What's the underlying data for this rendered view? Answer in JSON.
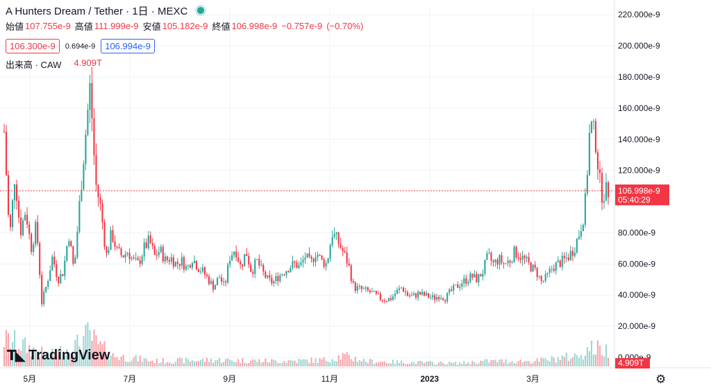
{
  "header": {
    "title": "A Hunters Dream / Tether · 1日 · MEXC",
    "status_color": "#26a69a"
  },
  "ohlc": {
    "open_label": "始値",
    "open": "107.755e-9",
    "high_label": "高値",
    "high": "111.999e-9",
    "low_label": "安値",
    "low": "105.182e-9",
    "close_label": "終値",
    "close": "106.998e-9",
    "change": "−0.757e-9",
    "change_pct": "(−0.70%)"
  },
  "quote": {
    "bid": "106.300e-9",
    "spread": "0.694e-9",
    "ask": "106.994e-9"
  },
  "volume_legend": {
    "label": "出来高 · CAW",
    "value": "4.909T"
  },
  "branding": {
    "name": "TradingView"
  },
  "price_tag": {
    "price": "106.998e-9",
    "countdown": "05:40:29"
  },
  "volume_tag": {
    "value": "4.909T"
  },
  "icons": {
    "settings": "gear-icon",
    "logo": "tradingview-logo-icon"
  },
  "colors": {
    "up": "#26a69a",
    "down": "#f23645",
    "ask": "#2962ff"
  },
  "chart_data": {
    "type": "candlestick",
    "title": "A Hunters Dream / Tether · 1日 · MEXC",
    "ylim": [
      0,
      225
    ],
    "y_unit": "e-9",
    "y_ticks": [
      "220.000e-9",
      "200.000e-9",
      "180.000e-9",
      "160.000e-9",
      "140.000e-9",
      "120.000e-9",
      "100.000e-9",
      "80.000e-9",
      "60.000e-9",
      "40.000e-9",
      "20.000e-9",
      "0.000e-9"
    ],
    "y_tick_values": [
      220,
      200,
      180,
      160,
      140,
      120,
      100,
      80,
      60,
      40,
      20,
      0
    ],
    "x_ticks": [
      "5月",
      "7月",
      "9月",
      "11月",
      "2023",
      "3月"
    ],
    "x_tick_positions": [
      0.0423,
      0.2078,
      0.3733,
      0.5388,
      0.7043,
      0.8752
    ],
    "last_price": 106.998,
    "grid": true,
    "close_points": [
      [
        0.0,
        145
      ],
      [
        0.0089,
        75
      ],
      [
        0.0178,
        118
      ],
      [
        0.0267,
        80
      ],
      [
        0.0356,
        95
      ],
      [
        0.0445,
        70
      ],
      [
        0.0534,
        85
      ],
      [
        0.0623,
        35
      ],
      [
        0.0712,
        48
      ],
      [
        0.0801,
        65
      ],
      [
        0.089,
        50
      ],
      [
        0.0979,
        55
      ],
      [
        0.1068,
        80
      ],
      [
        0.1157,
        55
      ],
      [
        0.1246,
        98
      ],
      [
        0.1335,
        138
      ],
      [
        0.1424,
        175
      ],
      [
        0.1513,
        112
      ],
      [
        0.1602,
        95
      ],
      [
        0.1691,
        65
      ],
      [
        0.178,
        80
      ],
      [
        0.1869,
        68
      ],
      [
        0.1958,
        65
      ],
      [
        0.2047,
        68
      ],
      [
        0.2136,
        62
      ],
      [
        0.2225,
        60
      ],
      [
        0.2314,
        70
      ],
      [
        0.2403,
        75
      ],
      [
        0.2492,
        65
      ],
      [
        0.2581,
        69
      ],
      [
        0.267,
        62
      ],
      [
        0.2759,
        64
      ],
      [
        0.2848,
        60
      ],
      [
        0.2937,
        62
      ],
      [
        0.3026,
        57
      ],
      [
        0.3115,
        64
      ],
      [
        0.3204,
        58
      ],
      [
        0.3293,
        55
      ],
      [
        0.3382,
        50
      ],
      [
        0.3471,
        45
      ],
      [
        0.356,
        52
      ],
      [
        0.3649,
        45
      ],
      [
        0.3738,
        65
      ],
      [
        0.3827,
        70
      ],
      [
        0.3916,
        58
      ],
      [
        0.4005,
        68
      ],
      [
        0.4094,
        55
      ],
      [
        0.4183,
        62
      ],
      [
        0.4272,
        55
      ],
      [
        0.4361,
        50
      ],
      [
        0.445,
        48
      ],
      [
        0.4539,
        52
      ],
      [
        0.4628,
        55
      ],
      [
        0.4717,
        58
      ],
      [
        0.4806,
        60
      ],
      [
        0.4895,
        58
      ],
      [
        0.4984,
        65
      ],
      [
        0.5073,
        60
      ],
      [
        0.5162,
        68
      ],
      [
        0.5251,
        62
      ],
      [
        0.534,
        60
      ],
      [
        0.5429,
        80
      ],
      [
        0.5518,
        75
      ],
      [
        0.5607,
        68
      ],
      [
        0.5696,
        60
      ],
      [
        0.5785,
        45
      ],
      [
        0.5874,
        44
      ],
      [
        0.5963,
        43
      ],
      [
        0.6052,
        42
      ],
      [
        0.6141,
        40
      ],
      [
        0.623,
        38
      ],
      [
        0.6319,
        37
      ],
      [
        0.6408,
        38
      ],
      [
        0.6497,
        42
      ],
      [
        0.6586,
        45
      ],
      [
        0.6675,
        40
      ],
      [
        0.6764,
        39
      ],
      [
        0.6853,
        41
      ],
      [
        0.6942,
        40
      ],
      [
        0.7031,
        39
      ],
      [
        0.712,
        38
      ],
      [
        0.7209,
        40
      ],
      [
        0.7298,
        38
      ],
      [
        0.7387,
        42
      ],
      [
        0.7476,
        45
      ],
      [
        0.7565,
        48
      ],
      [
        0.7654,
        50
      ],
      [
        0.7743,
        52
      ],
      [
        0.7832,
        50
      ],
      [
        0.7921,
        55
      ],
      [
        0.801,
        65
      ],
      [
        0.8099,
        60
      ],
      [
        0.8188,
        63
      ],
      [
        0.8277,
        60
      ],
      [
        0.8366,
        62
      ],
      [
        0.8455,
        68
      ],
      [
        0.8544,
        65
      ],
      [
        0.8633,
        62
      ],
      [
        0.8722,
        58
      ],
      [
        0.8811,
        55
      ],
      [
        0.89,
        48
      ],
      [
        0.8989,
        52
      ],
      [
        0.9078,
        58
      ],
      [
        0.9167,
        60
      ],
      [
        0.9256,
        62
      ],
      [
        0.9345,
        65
      ],
      [
        0.9434,
        70
      ],
      [
        0.9523,
        80
      ],
      [
        0.9612,
        95
      ],
      [
        0.9701,
        150
      ],
      [
        0.979,
        140
      ],
      [
        0.9879,
        105
      ],
      [
        1.0,
        106.998
      ]
    ],
    "volume_profile": [
      [
        0.0,
        0.5
      ],
      [
        0.02,
        0.45
      ],
      [
        0.05,
        0.3
      ],
      [
        0.075,
        0.2
      ],
      [
        0.12,
        0.4
      ],
      [
        0.14,
        0.6
      ],
      [
        0.155,
        0.4
      ],
      [
        0.18,
        0.2
      ],
      [
        0.25,
        0.1
      ],
      [
        0.35,
        0.12
      ],
      [
        0.45,
        0.1
      ],
      [
        0.53,
        0.12
      ],
      [
        0.56,
        0.2
      ],
      [
        0.6,
        0.1
      ],
      [
        0.65,
        0.08
      ],
      [
        0.75,
        0.06
      ],
      [
        0.8,
        0.1
      ],
      [
        0.88,
        0.1
      ],
      [
        0.95,
        0.2
      ],
      [
        0.97,
        0.35
      ],
      [
        1.0,
        0.3
      ]
    ]
  }
}
